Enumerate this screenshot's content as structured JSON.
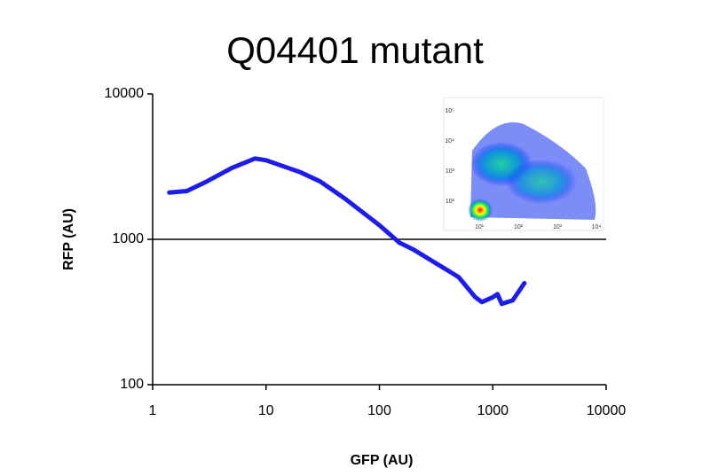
{
  "chart_data": {
    "type": "line",
    "title": "Q04401 mutant",
    "x_label": "GFP (AU)",
    "y_label": "RFP (AU)",
    "x": [
      1.4,
      2,
      3,
      5,
      8,
      10,
      20,
      30,
      50,
      100,
      150,
      200,
      300,
      500,
      700,
      800,
      1000,
      1100,
      1200,
      1500,
      1900
    ],
    "values": [
      2100,
      2150,
      2500,
      3100,
      3600,
      3500,
      2900,
      2500,
      1900,
      1250,
      950,
      850,
      700,
      550,
      400,
      370,
      400,
      420,
      360,
      380,
      500
    ],
    "color": "#1c1cf0",
    "x_log": true,
    "y_log": true,
    "xlim": [
      1,
      10000
    ],
    "ylim": [
      100,
      10000
    ],
    "xticks": [
      1,
      10,
      100,
      1000,
      10000
    ],
    "yticks": [
      100,
      1000,
      10000
    ],
    "grid": true,
    "inset": {
      "y_labels": [
        "10⁵",
        "10⁴",
        "10³",
        "10²"
      ],
      "x_labels": [
        "10¹",
        "10²",
        "10³",
        "10⁴"
      ]
    }
  }
}
